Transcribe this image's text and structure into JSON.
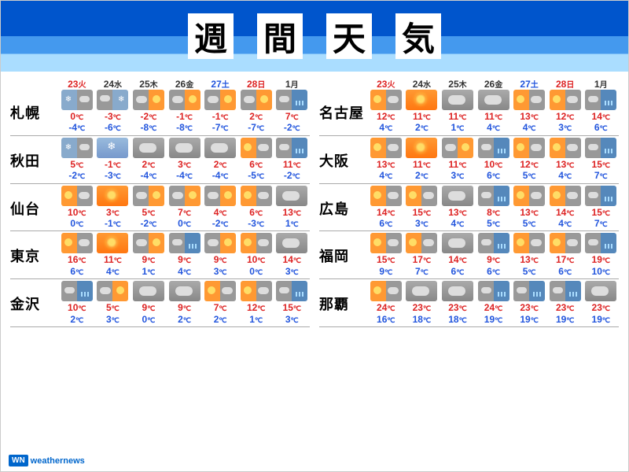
{
  "title": [
    "週",
    "間",
    "天",
    "気"
  ],
  "dates": [
    {
      "d": "23",
      "w": "火",
      "c": "#dd2222"
    },
    {
      "d": "24",
      "w": "水",
      "c": "#333"
    },
    {
      "d": "25",
      "w": "木",
      "c": "#333"
    },
    {
      "d": "26",
      "w": "金",
      "c": "#333"
    },
    {
      "d": "27",
      "w": "土",
      "c": "#2255dd"
    },
    {
      "d": "28",
      "w": "日",
      "c": "#dd2222"
    },
    {
      "d": "1",
      "w": "月",
      "c": "#333"
    }
  ],
  "columns": [
    [
      {
        "city": "札幌",
        "days": [
          {
            "i": "snowcloud",
            "hi": 0,
            "lo": -4
          },
          {
            "i": "cloudsnow",
            "hi": -3,
            "lo": -6
          },
          {
            "i": "cloudsun",
            "hi": -2,
            "lo": -8
          },
          {
            "i": "cloudsun",
            "hi": -1,
            "lo": -8
          },
          {
            "i": "cloudsun",
            "hi": -1,
            "lo": -7
          },
          {
            "i": "cloudsun",
            "hi": 2,
            "lo": -7
          },
          {
            "i": "cloudrain",
            "hi": 7,
            "lo": -2
          }
        ]
      },
      {
        "city": "秋田",
        "days": [
          {
            "i": "snowcloud",
            "hi": 5,
            "lo": -2
          },
          {
            "i": "snow",
            "hi": -1,
            "lo": -3
          },
          {
            "i": "cloud",
            "hi": 2,
            "lo": -4
          },
          {
            "i": "cloud",
            "hi": 3,
            "lo": -4
          },
          {
            "i": "cloud",
            "hi": 2,
            "lo": -4
          },
          {
            "i": "suncloud",
            "hi": 6,
            "lo": -5
          },
          {
            "i": "cloudrain",
            "hi": 11,
            "lo": -2
          }
        ]
      },
      {
        "city": "仙台",
        "days": [
          {
            "i": "suncloud",
            "hi": 10,
            "lo": 0
          },
          {
            "i": "sun",
            "hi": 3,
            "lo": -1
          },
          {
            "i": "cloudsun",
            "hi": 5,
            "lo": -2
          },
          {
            "i": "cloudsun",
            "hi": 7,
            "lo": 0
          },
          {
            "i": "cloudsun",
            "hi": 4,
            "lo": -2
          },
          {
            "i": "suncloud",
            "hi": 6,
            "lo": -3
          },
          {
            "i": "cloud",
            "hi": 13,
            "lo": 1
          }
        ]
      },
      {
        "city": "東京",
        "days": [
          {
            "i": "suncloud",
            "hi": 16,
            "lo": 6
          },
          {
            "i": "sun",
            "hi": 11,
            "lo": 4
          },
          {
            "i": "cloudsun",
            "hi": 9,
            "lo": 1
          },
          {
            "i": "cloudrain",
            "hi": 9,
            "lo": 4
          },
          {
            "i": "cloudsun",
            "hi": 9,
            "lo": 3
          },
          {
            "i": "suncloud",
            "hi": 10,
            "lo": 0
          },
          {
            "i": "cloud",
            "hi": 14,
            "lo": 3
          }
        ]
      },
      {
        "city": "金沢",
        "days": [
          {
            "i": "cloudrain",
            "hi": 10,
            "lo": 2
          },
          {
            "i": "cloudsun",
            "hi": 5,
            "lo": 3
          },
          {
            "i": "cloud",
            "hi": 9,
            "lo": 0
          },
          {
            "i": "cloud",
            "hi": 9,
            "lo": 2
          },
          {
            "i": "suncloud",
            "hi": 7,
            "lo": 2
          },
          {
            "i": "suncloud",
            "hi": 12,
            "lo": 1
          },
          {
            "i": "cloudrain",
            "hi": 15,
            "lo": 3
          }
        ]
      }
    ],
    [
      {
        "city": "名古屋",
        "days": [
          {
            "i": "suncloud",
            "hi": 12,
            "lo": 4
          },
          {
            "i": "sun",
            "hi": 11,
            "lo": 2
          },
          {
            "i": "cloud",
            "hi": 11,
            "lo": 1
          },
          {
            "i": "cloud",
            "hi": 11,
            "lo": 4
          },
          {
            "i": "suncloud",
            "hi": 13,
            "lo": 4
          },
          {
            "i": "suncloud",
            "hi": 12,
            "lo": 3
          },
          {
            "i": "cloudrain",
            "hi": 14,
            "lo": 6
          }
        ]
      },
      {
        "city": "大阪",
        "days": [
          {
            "i": "suncloud",
            "hi": 13,
            "lo": 4
          },
          {
            "i": "sun",
            "hi": 11,
            "lo": 2
          },
          {
            "i": "cloudsun",
            "hi": 11,
            "lo": 3
          },
          {
            "i": "cloudrain",
            "hi": 10,
            "lo": 6
          },
          {
            "i": "suncloud",
            "hi": 12,
            "lo": 5
          },
          {
            "i": "suncloud",
            "hi": 13,
            "lo": 4
          },
          {
            "i": "cloudrain",
            "hi": 15,
            "lo": 7
          }
        ]
      },
      {
        "city": "広島",
        "days": [
          {
            "i": "suncloud",
            "hi": 14,
            "lo": 6
          },
          {
            "i": "suncloud",
            "hi": 15,
            "lo": 3
          },
          {
            "i": "cloud",
            "hi": 13,
            "lo": 4
          },
          {
            "i": "cloudrain",
            "hi": 8,
            "lo": 5
          },
          {
            "i": "suncloud",
            "hi": 13,
            "lo": 5
          },
          {
            "i": "suncloud",
            "hi": 14,
            "lo": 4
          },
          {
            "i": "cloudrain",
            "hi": 15,
            "lo": 7
          }
        ]
      },
      {
        "city": "福岡",
        "days": [
          {
            "i": "suncloud",
            "hi": 15,
            "lo": 9
          },
          {
            "i": "suncloud",
            "hi": 17,
            "lo": 7
          },
          {
            "i": "cloud",
            "hi": 14,
            "lo": 6
          },
          {
            "i": "cloudrain",
            "hi": 9,
            "lo": 6
          },
          {
            "i": "suncloud",
            "hi": 13,
            "lo": 5
          },
          {
            "i": "suncloud",
            "hi": 17,
            "lo": 6
          },
          {
            "i": "cloudrain",
            "hi": 19,
            "lo": 10
          }
        ]
      },
      {
        "city": "那覇",
        "days": [
          {
            "i": "suncloud",
            "hi": 24,
            "lo": 16
          },
          {
            "i": "cloud",
            "hi": 23,
            "lo": 18
          },
          {
            "i": "cloud",
            "hi": 23,
            "lo": 18
          },
          {
            "i": "cloudrain",
            "hi": 24,
            "lo": 19
          },
          {
            "i": "cloudrain",
            "hi": 23,
            "lo": 19
          },
          {
            "i": "cloudrain",
            "hi": 23,
            "lo": 19
          },
          {
            "i": "cloud",
            "hi": 23,
            "lo": 19
          }
        ]
      }
    ]
  ],
  "logo_box": "WN",
  "logo_text": "weathernews",
  "colors": {
    "hi": "#dd2222",
    "lo": "#2255dd",
    "header_top": "#0055cc",
    "header_mid": "#4499ee",
    "header_bot": "#aaddff"
  }
}
